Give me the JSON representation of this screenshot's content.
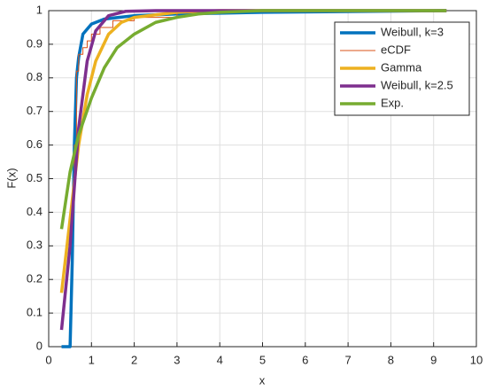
{
  "chart_data": {
    "type": "line",
    "xlabel": "x",
    "ylabel": "F(x)",
    "xlim": [
      0,
      10
    ],
    "xticks": [
      0,
      1,
      2,
      3,
      4,
      5,
      6,
      7,
      8,
      9,
      10
    ],
    "ylim": [
      0,
      1
    ],
    "yticks": [
      0,
      0.1,
      0.2,
      0.3,
      0.4,
      0.5,
      0.6,
      0.7,
      0.8,
      0.9,
      1
    ],
    "grid": true,
    "legend": "northeast",
    "series": [
      {
        "name": "Weibull, k=3",
        "color": "#0072bd",
        "width": 3.5,
        "step": false,
        "x": [
          0.3,
          0.5,
          0.55,
          0.6,
          0.65,
          0.7,
          0.8,
          1.0,
          1.3,
          2,
          3,
          5,
          9.3
        ],
        "values": [
          0,
          0,
          0.25,
          0.6,
          0.8,
          0.86,
          0.93,
          0.96,
          0.975,
          0.985,
          0.99,
          0.995,
          1
        ]
      },
      {
        "name": "eCDF",
        "color": "#d95319",
        "width": 1,
        "step": true,
        "x": [
          0.55,
          0.6,
          0.65,
          0.7,
          0.8,
          0.9,
          1.0,
          1.2,
          1.5,
          2.0,
          3.0,
          9.3
        ],
        "values": [
          0.45,
          0.6,
          0.82,
          0.87,
          0.89,
          0.91,
          0.93,
          0.95,
          0.97,
          0.98,
          1,
          1
        ]
      },
      {
        "name": "Gamma",
        "color": "#edb120",
        "width": 3.5,
        "step": false,
        "x": [
          0.3,
          0.5,
          0.7,
          0.9,
          1.1,
          1.4,
          1.7,
          2,
          3,
          4,
          9.3
        ],
        "values": [
          0.16,
          0.38,
          0.6,
          0.75,
          0.85,
          0.93,
          0.965,
          0.98,
          0.995,
          1,
          1
        ]
      },
      {
        "name": "Weibull, k=2.5",
        "color": "#7e2f8e",
        "width": 3.5,
        "step": false,
        "x": [
          0.3,
          0.5,
          0.7,
          0.9,
          1.1,
          1.4,
          1.8,
          2.5,
          9.3
        ],
        "values": [
          0.05,
          0.3,
          0.65,
          0.85,
          0.94,
          0.985,
          0.998,
          1,
          1
        ]
      },
      {
        "name": "Exp.",
        "color": "#77ac30",
        "width": 3.5,
        "step": false,
        "x": [
          0.3,
          0.5,
          0.7,
          1.0,
          1.3,
          1.6,
          2,
          2.5,
          3,
          3.5,
          4,
          5,
          9.3
        ],
        "values": [
          0.35,
          0.52,
          0.63,
          0.74,
          0.83,
          0.89,
          0.93,
          0.965,
          0.98,
          0.99,
          0.995,
          1,
          1
        ]
      }
    ]
  }
}
